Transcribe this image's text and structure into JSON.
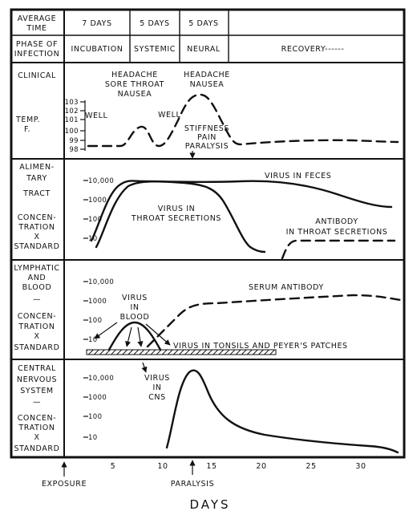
{
  "header": {
    "row_label_time": [
      "AVERAGE",
      "TIME"
    ],
    "row_label_phase": [
      "PHASE OF",
      "INFECTION"
    ],
    "durations": [
      "7 DAYS",
      "5 DAYS",
      "5 DAYS"
    ],
    "phases": [
      "INCUBATION",
      "SYSTEMIC",
      "NEURAL",
      "RECOVERY------"
    ]
  },
  "clinical": {
    "label": "CLINICAL",
    "temp_label": [
      "TEMP.",
      "F."
    ],
    "temp_ticks": [
      "103",
      "102",
      "101",
      "100",
      "99",
      "98"
    ],
    "annotations": {
      "well_1": "WELL",
      "well_2": "WELL",
      "systemic": [
        "HEADACHE",
        "SORE THROAT",
        "NAUSEA"
      ],
      "neural": [
        "HEADACHE",
        "NAUSEA"
      ],
      "paralysis": [
        "STIFFNESS",
        "PAIN",
        "PARALYSIS"
      ]
    }
  },
  "alimentary": {
    "label": [
      "ALIMEN-",
      "TARY",
      "TRACT",
      "",
      "CONCEN-",
      "TRATION",
      "X",
      "STANDARD"
    ],
    "ticks": [
      "10,000",
      "1000",
      "100",
      "10"
    ],
    "annotations": {
      "feces": "VIRUS IN FECES",
      "throat": [
        "VIRUS IN",
        "THROAT SECRETIONS"
      ],
      "antibody": [
        "ANTIBODY",
        "IN THROAT SECRETIONS"
      ]
    }
  },
  "lymphatic": {
    "label": [
      "LYMPHATIC",
      "AND",
      "BLOOD",
      "—",
      "CONCEN-",
      "TRATION",
      "X",
      "STANDARD"
    ],
    "ticks": [
      "10,000",
      "1000",
      "100",
      "10"
    ],
    "annotations": {
      "serum": "SERUM ANTIBODY",
      "blood": [
        "VIRUS",
        "IN",
        "BLOOD"
      ],
      "tonsils": "VIRUS IN TONSILS AND PEYER'S PATCHES"
    }
  },
  "cns": {
    "label": [
      "CENTRAL",
      "NERVOUS",
      "SYSTEM",
      "—",
      "CONCEN-",
      "TRATION",
      "X",
      "STANDARD"
    ],
    "ticks": [
      "10,000",
      "1000",
      "100",
      "10"
    ],
    "annotations": {
      "cns_virus": [
        "VIRUS",
        "IN",
        "CNS"
      ]
    }
  },
  "x_axis": {
    "ticks": [
      "5",
      "10",
      "15",
      "20",
      "25",
      "30"
    ],
    "exposure": "EXPOSURE",
    "paralysis": "PARALYSIS",
    "title": "DAYS"
  }
}
